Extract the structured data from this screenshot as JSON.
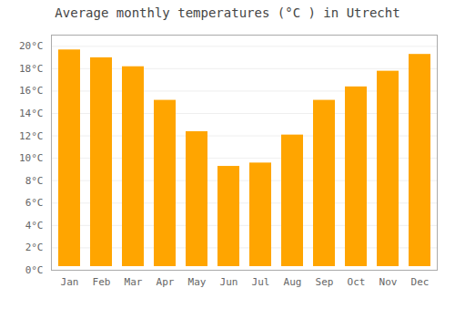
{
  "chart_data": {
    "type": "bar",
    "title": "Average monthly temperatures (°C ) in Utrecht",
    "categories": [
      "Jan",
      "Feb",
      "Mar",
      "Apr",
      "May",
      "Jun",
      "Jul",
      "Aug",
      "Sep",
      "Oct",
      "Nov",
      "Dec"
    ],
    "values": [
      20.0,
      19.3,
      18.5,
      15.5,
      12.7,
      9.6,
      9.9,
      12.4,
      15.5,
      16.7,
      18.1,
      19.6
    ],
    "color": "#FFA500",
    "ylim": [
      0,
      21
    ],
    "yticks": [
      {
        "value": 0,
        "label": "0°C"
      },
      {
        "value": 2,
        "label": "2°C"
      },
      {
        "value": 4,
        "label": "4°C"
      },
      {
        "value": 6,
        "label": "6°C"
      },
      {
        "value": 8,
        "label": "8°C"
      },
      {
        "value": 10,
        "label": "10°C"
      },
      {
        "value": 12,
        "label": "12°C"
      },
      {
        "value": 14,
        "label": "14°C"
      },
      {
        "value": 16,
        "label": "16°C"
      },
      {
        "value": 18,
        "label": "18°C"
      },
      {
        "value": 20,
        "label": "20°C"
      }
    ],
    "grid": true
  }
}
